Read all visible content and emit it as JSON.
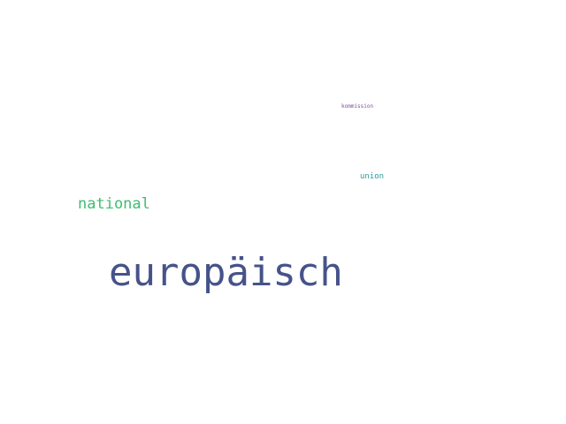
{
  "word_cloud": {
    "words": [
      {
        "text": "kommission",
        "color": "#7a4e9a"
      },
      {
        "text": "union",
        "color": "#2a9a9a"
      },
      {
        "text": "national",
        "color": "#3dbd70"
      },
      {
        "text": "europäisch",
        "color": "#46538a"
      }
    ]
  }
}
